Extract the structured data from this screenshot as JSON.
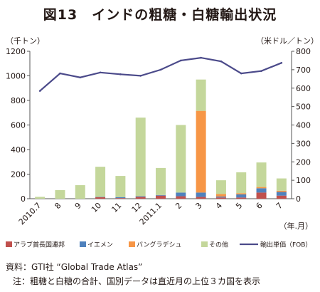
{
  "figure": {
    "title": "図13　インドの粗糖・白糖輸出状況",
    "source": "資料：GTI社 “Global Trade Atlas”",
    "note": "注：粗糖と白糖の合計、国別データは直近月の上位３カ国を表示"
  },
  "chart_data": {
    "type": "bar",
    "stacked": true,
    "left_unit": "（千トン）",
    "right_unit": "（米ドル／トン）",
    "x_unit": "（年.月）",
    "categories": [
      "2010.7",
      "8",
      "9",
      "10",
      "11",
      "12",
      "2011.1",
      "2",
      "3",
      "4",
      "5",
      "6",
      "7"
    ],
    "ylim": [
      0,
      1200
    ],
    "yticks": [
      0,
      200,
      400,
      600,
      800,
      1000,
      1200
    ],
    "y2lim": [
      0,
      800
    ],
    "y2ticks": [
      0,
      100,
      200,
      300,
      400,
      500,
      600,
      700,
      800
    ],
    "grid": false,
    "legend_position": "bottom",
    "series": [
      {
        "name": "アラブ首長国連邦",
        "color": "#c0504d",
        "axis": "left",
        "values": [
          0,
          0,
          0,
          12,
          5,
          15,
          25,
          20,
          15,
          10,
          10,
          50,
          25
        ]
      },
      {
        "name": "イエメン",
        "color": "#4f81bd",
        "axis": "left",
        "values": [
          0,
          0,
          0,
          3,
          8,
          5,
          5,
          30,
          35,
          8,
          25,
          35,
          30
        ]
      },
      {
        "name": "バングラデシュ",
        "color": "#f79646",
        "axis": "left",
        "values": [
          0,
          0,
          0,
          0,
          0,
          0,
          0,
          0,
          665,
          20,
          10,
          10,
          10
        ]
      },
      {
        "name": "その他",
        "color": "#c4d79b",
        "axis": "left",
        "values": [
          15,
          70,
          110,
          245,
          172,
          640,
          220,
          550,
          255,
          112,
          170,
          200,
          100
        ]
      },
      {
        "name": "輸出単価（FOB）",
        "color": "#4b4a8a",
        "axis": "right",
        "type": "line",
        "values": [
          585,
          680,
          658,
          685,
          675,
          667,
          700,
          750,
          765,
          745,
          680,
          693,
          737
        ]
      }
    ]
  }
}
